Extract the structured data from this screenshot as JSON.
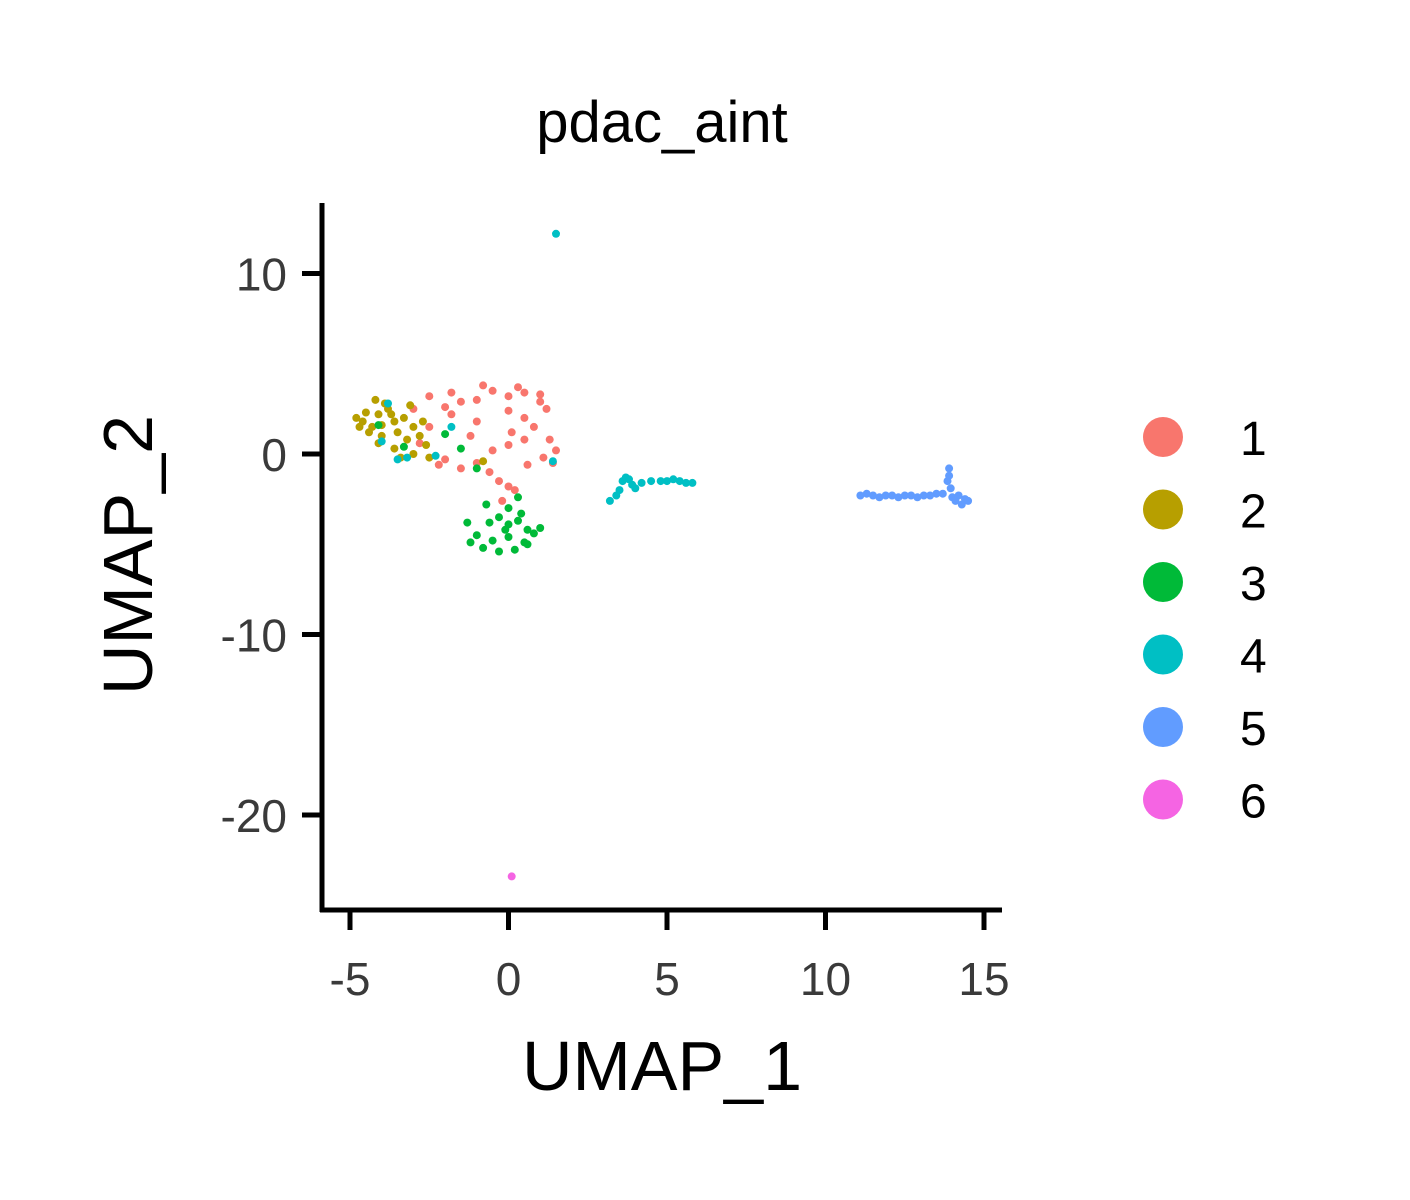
{
  "chart_data": {
    "type": "scatter",
    "title": "pdac_aint",
    "xlabel": "UMAP_1",
    "ylabel": "UMAP_2",
    "xlim": [
      -6,
      15.5
    ],
    "ylim": [
      -25.5,
      14
    ],
    "xticks": [
      -5,
      0,
      5,
      10,
      15
    ],
    "xtick_labels": [
      "-5",
      "0",
      "5",
      "10",
      "15"
    ],
    "yticks": [
      10,
      0,
      -10,
      -20
    ],
    "ytick_labels": [
      "10",
      "0",
      "-10",
      "-20"
    ],
    "grid": false,
    "legend_position": "right",
    "series": [
      {
        "name": "1",
        "color": "#F8766D",
        "points": [
          [
            -0.5,
            3.5
          ],
          [
            0,
            3.2
          ],
          [
            0.5,
            3.4
          ],
          [
            1,
            3.3
          ],
          [
            -1,
            3.0
          ],
          [
            -1.5,
            2.9
          ],
          [
            -2,
            2.6
          ],
          [
            -2.5,
            3.2
          ],
          [
            -1.8,
            2.2
          ],
          [
            -1,
            1.8
          ],
          [
            0,
            2.4
          ],
          [
            0.5,
            2.0
          ],
          [
            1.2,
            2.5
          ],
          [
            0.8,
            1.5
          ],
          [
            1.3,
            0.8
          ],
          [
            1.5,
            0.2
          ],
          [
            1.4,
            -0.5
          ],
          [
            0.5,
            0.8
          ],
          [
            0,
            0.5
          ],
          [
            -0.5,
            0.2
          ],
          [
            -1,
            -0.5
          ],
          [
            -2,
            -0.3
          ],
          [
            -1.5,
            -0.8
          ],
          [
            -0.3,
            -1.5
          ],
          [
            0,
            -1.8
          ],
          [
            0.2,
            -2.0
          ],
          [
            -0.2,
            -2.6
          ],
          [
            -2.5,
            1.5
          ],
          [
            -3,
            2.5
          ],
          [
            -2.2,
            -0.6
          ],
          [
            -0.8,
            3.8
          ],
          [
            0.3,
            3.7
          ],
          [
            1.0,
            2.9
          ],
          [
            0.1,
            1.2
          ],
          [
            -1.2,
            1.0
          ],
          [
            1.1,
            -0.2
          ],
          [
            -0.6,
            -1.0
          ],
          [
            -2.8,
            0.6
          ],
          [
            -1.8,
            3.4
          ],
          [
            0.6,
            -0.6
          ]
        ]
      },
      {
        "name": "2",
        "color": "#B79F00",
        "points": [
          [
            -4.8,
            2.0
          ],
          [
            -4.6,
            1.8
          ],
          [
            -4.5,
            2.3
          ],
          [
            -4.3,
            1.5
          ],
          [
            -4.1,
            2.2
          ],
          [
            -4,
            1.0
          ],
          [
            -3.8,
            2.5
          ],
          [
            -3.6,
            1.8
          ],
          [
            -3.5,
            1.2
          ],
          [
            -3.3,
            2.0
          ],
          [
            -3.2,
            0.8
          ],
          [
            -3.0,
            1.5
          ],
          [
            -2.8,
            1.0
          ],
          [
            -2.6,
            0.5
          ],
          [
            -3.9,
            2.8
          ],
          [
            -4.2,
            3.0
          ],
          [
            -3.6,
            0.3
          ],
          [
            -3.4,
            -0.2
          ],
          [
            -3.0,
            0.0
          ],
          [
            -4.4,
            1.2
          ],
          [
            -4.0,
            1.6
          ],
          [
            -3.7,
            2.2
          ],
          [
            -4.7,
            1.5
          ],
          [
            -2.5,
            -0.2
          ],
          [
            -0.8,
            -0.4
          ],
          [
            -3.1,
            2.7
          ],
          [
            -2.7,
            1.8
          ],
          [
            -4.1,
            0.6
          ]
        ]
      },
      {
        "name": "3",
        "color": "#00BA38",
        "points": [
          [
            -0.6,
            -3.8
          ],
          [
            -0.3,
            -3.5
          ],
          [
            0,
            -3.9
          ],
          [
            0.3,
            -3.7
          ],
          [
            0.6,
            -4.2
          ],
          [
            -1.0,
            -4.5
          ],
          [
            -0.5,
            -4.8
          ],
          [
            0,
            -4.6
          ],
          [
            0.5,
            -4.9
          ],
          [
            0.8,
            -4.4
          ],
          [
            -0.8,
            -5.2
          ],
          [
            -0.3,
            -5.4
          ],
          [
            0.2,
            -5.3
          ],
          [
            0.6,
            -5.0
          ],
          [
            -1.2,
            -4.9
          ],
          [
            -0.1,
            -4.2
          ],
          [
            0.4,
            -3.3
          ],
          [
            0,
            -3.0
          ],
          [
            -1.3,
            -3.8
          ],
          [
            1.0,
            -4.1
          ],
          [
            -1.0,
            -0.8
          ],
          [
            -3.3,
            0.4
          ],
          [
            -2.0,
            1.1
          ],
          [
            -1.5,
            0.3
          ],
          [
            -4.1,
            1.6
          ],
          [
            0.3,
            -2.4
          ],
          [
            -0.7,
            -2.8
          ]
        ]
      },
      {
        "name": "4",
        "color": "#00BFC4",
        "points": [
          [
            1.5,
            12.2
          ],
          [
            -3.2,
            -0.2
          ],
          [
            -3.5,
            -0.3
          ],
          [
            -2.3,
            -0.1
          ],
          [
            -1.8,
            1.5
          ],
          [
            -3.8,
            2.8
          ],
          [
            1.4,
            -0.4
          ],
          [
            -4.0,
            0.7
          ],
          [
            3.2,
            -2.6
          ],
          [
            3.4,
            -2.3
          ],
          [
            3.5,
            -2.0
          ],
          [
            3.6,
            -1.5
          ],
          [
            3.7,
            -1.3
          ],
          [
            3.8,
            -1.4
          ],
          [
            4.0,
            -1.9
          ],
          [
            4.2,
            -1.6
          ],
          [
            4.5,
            -1.5
          ],
          [
            4.8,
            -1.5
          ],
          [
            5.0,
            -1.5
          ],
          [
            5.2,
            -1.4
          ],
          [
            5.4,
            -1.5
          ],
          [
            5.6,
            -1.6
          ],
          [
            5.8,
            -1.6
          ],
          [
            3.9,
            -1.7
          ]
        ]
      },
      {
        "name": "5",
        "color": "#619CFF",
        "points": [
          [
            11.1,
            -2.3
          ],
          [
            11.3,
            -2.2
          ],
          [
            11.5,
            -2.3
          ],
          [
            11.7,
            -2.4
          ],
          [
            11.9,
            -2.3
          ],
          [
            12.1,
            -2.3
          ],
          [
            12.3,
            -2.4
          ],
          [
            12.5,
            -2.3
          ],
          [
            12.7,
            -2.3
          ],
          [
            12.9,
            -2.4
          ],
          [
            13.1,
            -2.3
          ],
          [
            13.3,
            -2.3
          ],
          [
            13.5,
            -2.2
          ],
          [
            13.7,
            -2.2
          ],
          [
            13.85,
            -1.5
          ],
          [
            13.9,
            -0.8
          ],
          [
            13.95,
            -1.9
          ],
          [
            14.0,
            -2.4
          ],
          [
            14.2,
            -2.3
          ],
          [
            14.4,
            -2.5
          ],
          [
            14.5,
            -2.6
          ],
          [
            14.3,
            -2.8
          ],
          [
            14.1,
            -2.6
          ],
          [
            13.9,
            -1.2
          ]
        ]
      },
      {
        "name": "6",
        "color": "#F564E3",
        "points": [
          [
            0.1,
            -23.4
          ]
        ]
      }
    ]
  }
}
